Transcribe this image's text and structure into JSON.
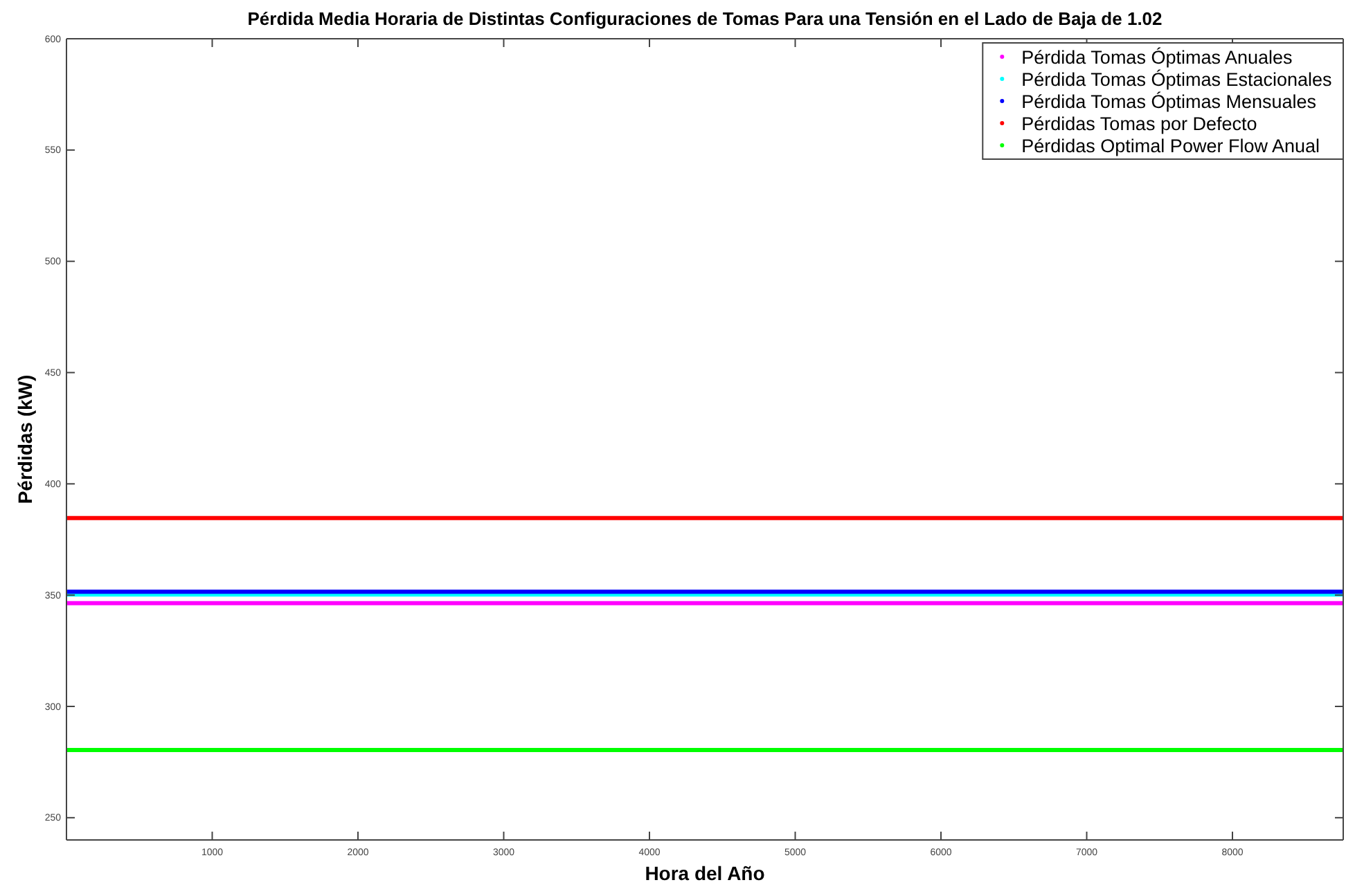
{
  "chart_data": {
    "type": "line",
    "title": "Pérdida Media Horaria de Distintas Configuraciones de Tomas Para una Tensión en el Lado de Baja de 1.02",
    "xlabel": "Hora del Año",
    "ylabel": "Pérdidas (kW)",
    "x": [
      1,
      8760
    ],
    "series": [
      {
        "name": "Pérdida Tomas Óptimas Anuales",
        "color": "#ff00ff",
        "values": [
          346.4,
          346.4
        ]
      },
      {
        "name": "Pérdida Tomas Óptimas Estacionales",
        "color": "#00ffff",
        "values": [
          350.3,
          350.3
        ]
      },
      {
        "name": "Pérdida Tomas Óptimas Mensuales",
        "color": "#0000ff",
        "values": [
          351.5,
          351.5
        ]
      },
      {
        "name": "Pérdidas Tomas por Defecto",
        "color": "#ff0000",
        "values": [
          384.6,
          384.6
        ]
      },
      {
        "name": "Pérdidas Optimal Power Flow Anual",
        "color": "#00ff00",
        "values": [
          280.4,
          280.4
        ]
      }
    ],
    "xlim": [
      0,
      8760
    ],
    "ylim": [
      240,
      600
    ],
    "xticks": [
      1000,
      2000,
      3000,
      4000,
      5000,
      6000,
      7000,
      8000
    ],
    "yticks": [
      250,
      300,
      350,
      400,
      450,
      500,
      550,
      600
    ],
    "grid": false,
    "legend": "top right",
    "line_style": "solid"
  }
}
